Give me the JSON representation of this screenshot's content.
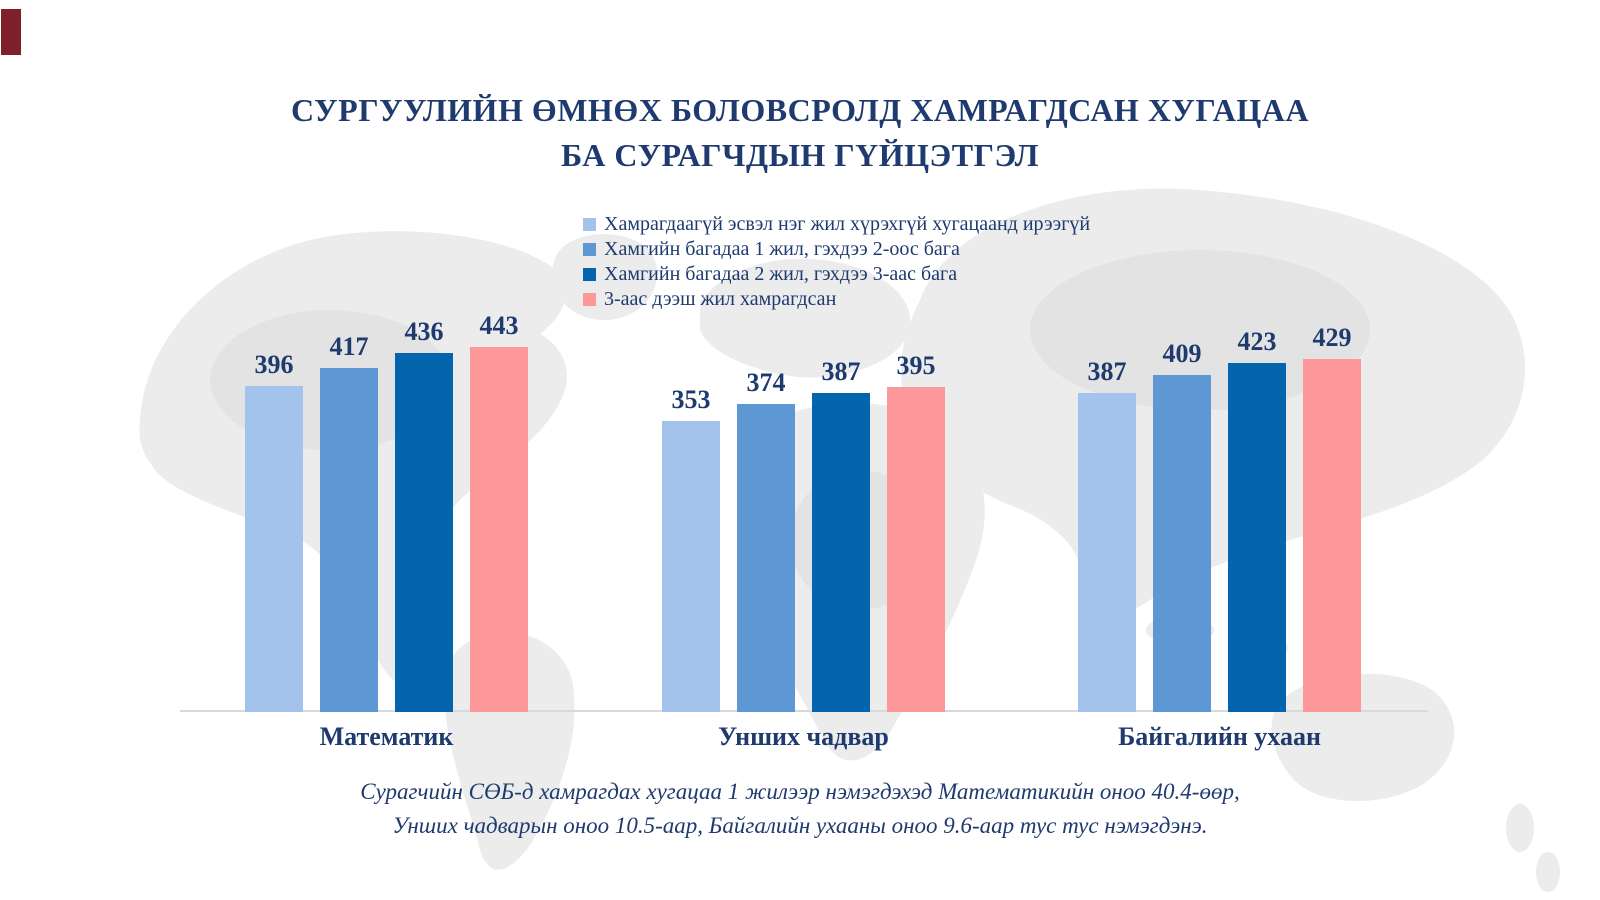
{
  "title": {
    "lines": [
      "СУРГУУЛИЙН ӨМНӨХ БОЛОВСРОЛД ХАМРАГДСАН ХУГАЦАА",
      "БА СУРАГЧДЫН ГҮЙЦЭТГЭЛ"
    ]
  },
  "chart_data": {
    "type": "bar",
    "title": "СУРГУУЛИЙН ӨМНӨХ БОЛОВСРОЛД ХАМРАГДСАН ХУГАЦАА БА СУРАГЧДЫН ГҮЙЦЭТГЭЛ",
    "categories": [
      "Математик",
      "Унших чадвар",
      "Байгалийн ухаан"
    ],
    "series": [
      {
        "name": "Хамрагдаагүй эсвэл нэг жил хүрэхгүй хугацаанд ирээгүй",
        "color": "#a3c3ec",
        "values": [
          396,
          353,
          387
        ]
      },
      {
        "name": "Хамгийн багадаа 1 жил, гэхдээ 2-оос бага",
        "color": "#5d98d4",
        "values": [
          417,
          374,
          409
        ]
      },
      {
        "name": "Хамгийн багадаа 2 жил, гэхдээ 3-аас бага",
        "color": "#0564ae",
        "values": [
          436,
          387,
          423
        ]
      },
      {
        "name": "3-аас дээш жил хамрагдсан",
        "color": "#fc9899",
        "values": [
          443,
          395,
          429
        ]
      }
    ],
    "ylim": [
      0,
      443
    ],
    "value_labels": true,
    "grid": false,
    "y_axis_visible": false,
    "legend_position": "top-center"
  },
  "footer": {
    "lines": [
      "Сурагчийн СӨБ-д хамрагдах хугацаа 1 жилээр нэмэгдэхэд Математикийн оноо 40.4-өөр,",
      "Унших чадварын оноо 10.5-аар, Байгалийн ухааны оноо 9.6-аар тус тус нэмэгдэнэ."
    ]
  },
  "colors": {
    "text_navy": "#1e3a6e",
    "axis_line": "#d9d9d9",
    "map_gray": "#ececec",
    "corner_mark": "#7d2029"
  }
}
